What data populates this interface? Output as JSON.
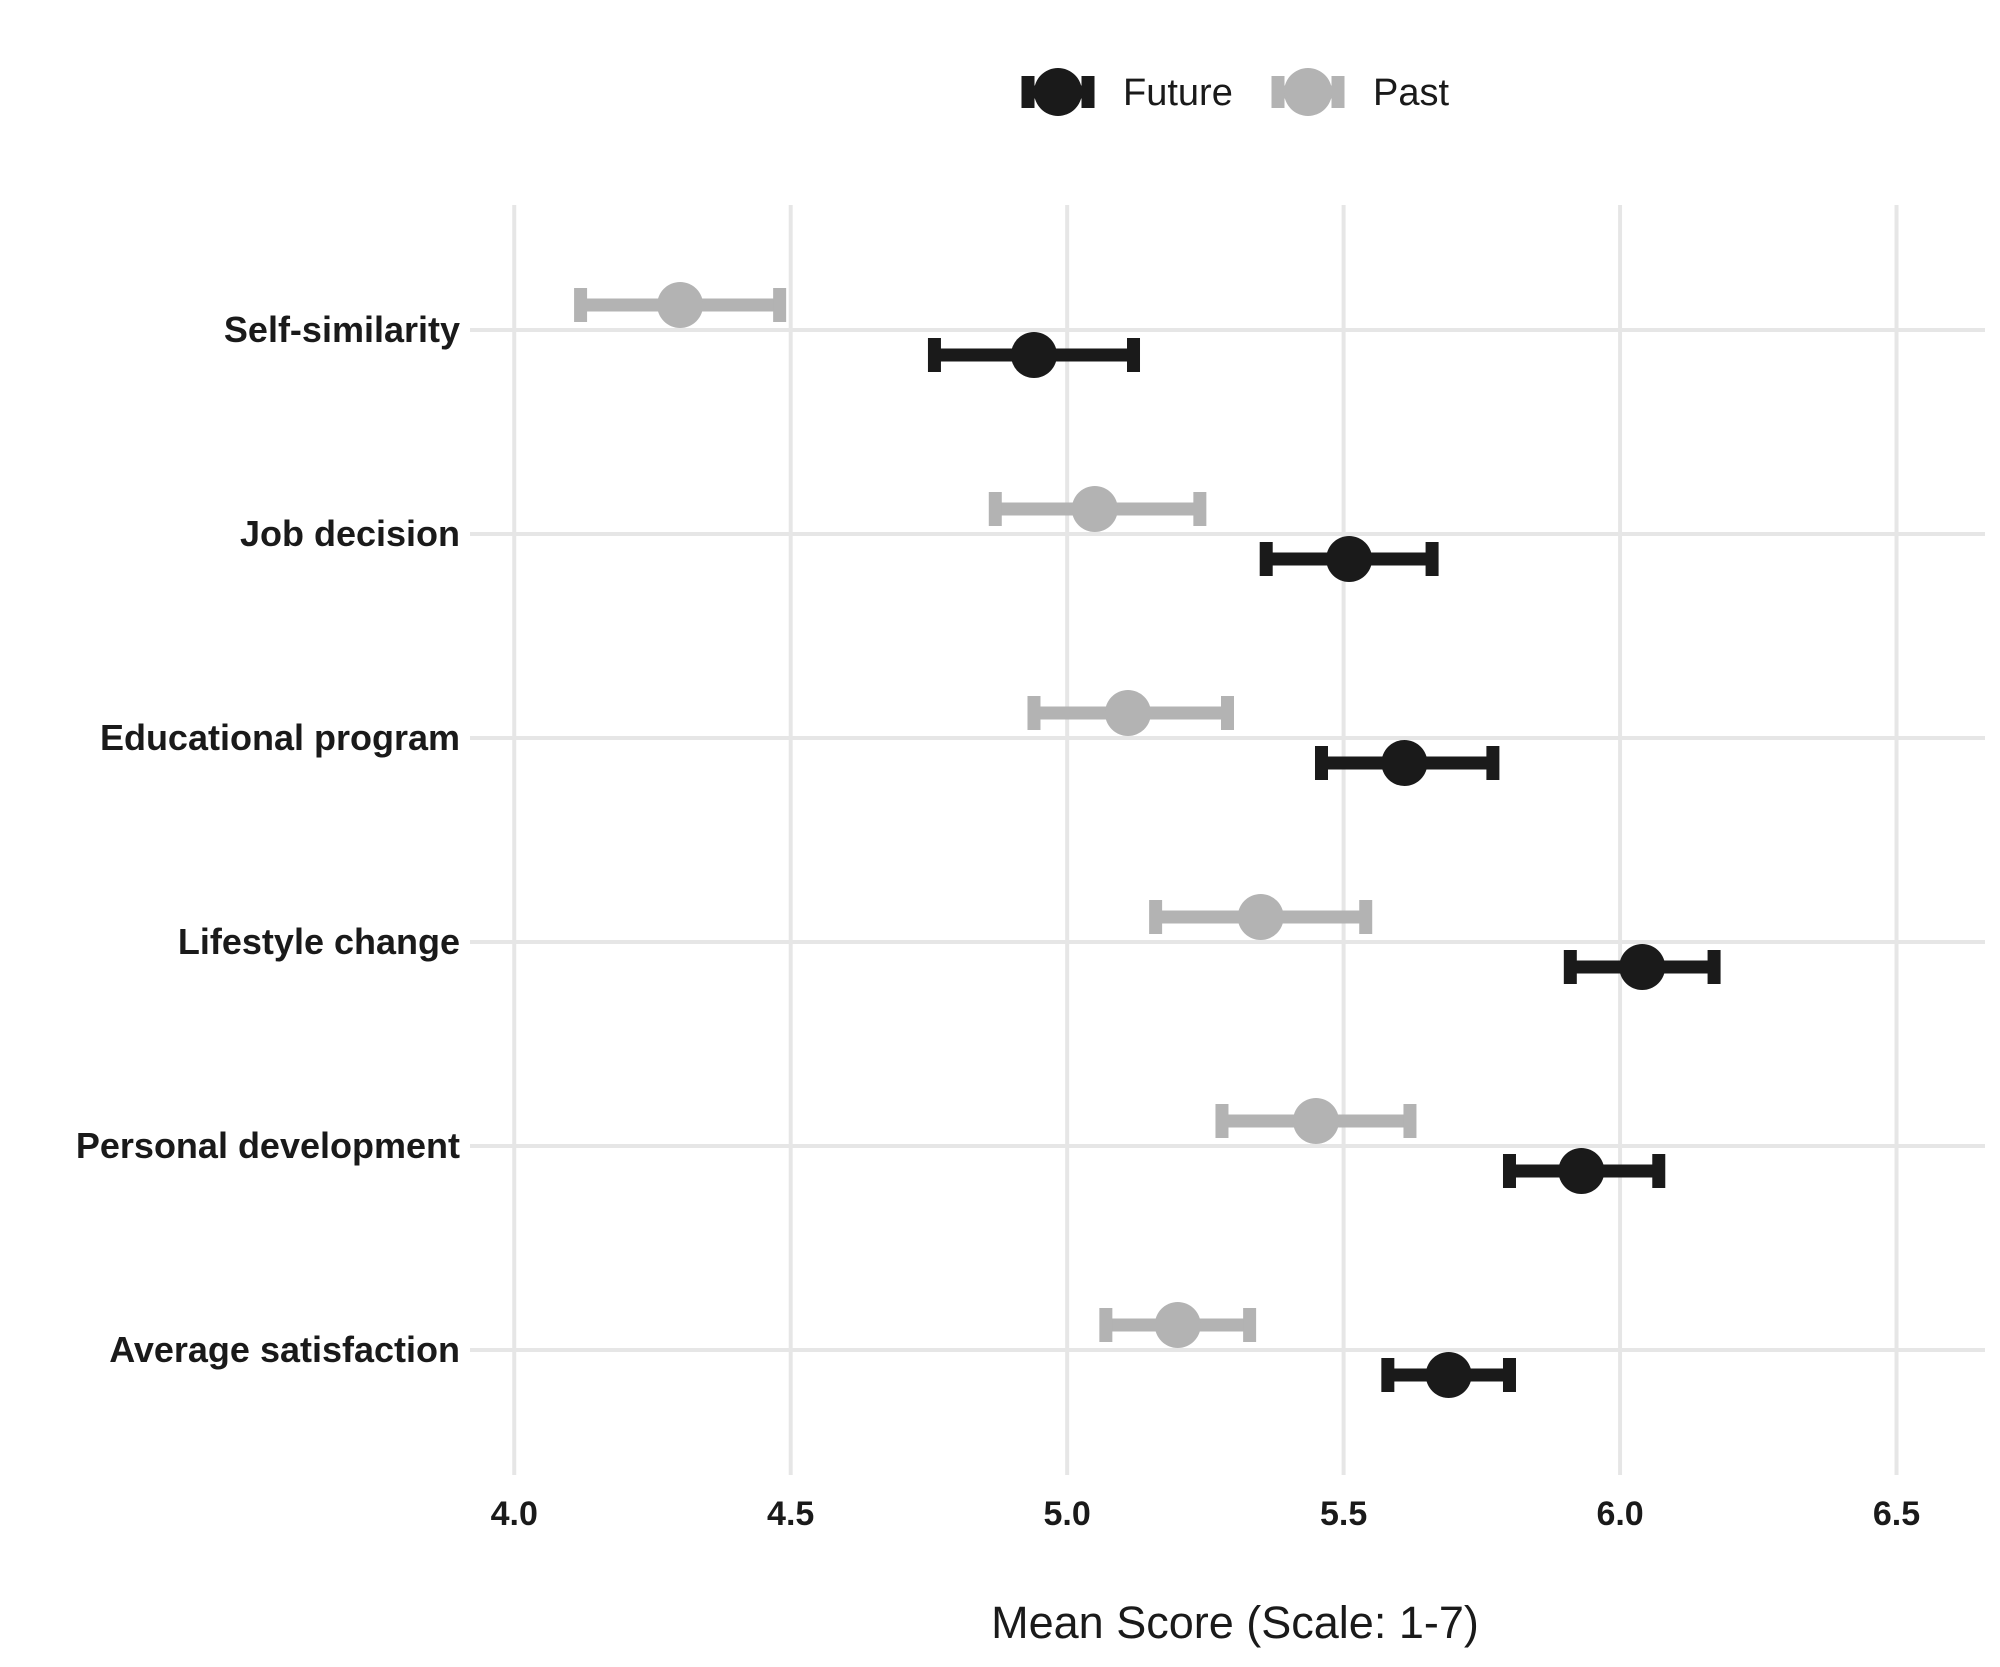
{
  "chart_data": {
    "type": "scatter",
    "xlabel": "Mean Score (Scale: 1-7)",
    "xlim": [
      3.92,
      6.66
    ],
    "xticks": [
      "4.0",
      "4.5",
      "5.0",
      "5.5",
      "6.0",
      "6.5"
    ],
    "categories": [
      "Self-similarity",
      "Job decision",
      "Educational program",
      "Lifestyle change",
      "Personal development",
      "Average satisfaction"
    ],
    "legend_position": "top",
    "grid": true,
    "series": [
      {
        "name": "Future",
        "color": "#1a1a1a",
        "values": [
          4.94,
          5.51,
          5.61,
          6.04,
          5.93,
          5.69
        ],
        "ci_low": [
          4.76,
          5.36,
          5.46,
          5.91,
          5.8,
          5.58
        ],
        "ci_high": [
          5.12,
          5.66,
          5.77,
          6.17,
          6.07,
          5.8
        ]
      },
      {
        "name": "Past",
        "color": "#b3b3b3",
        "values": [
          4.3,
          5.05,
          5.11,
          5.35,
          5.45,
          5.2
        ],
        "ci_low": [
          4.12,
          4.87,
          4.94,
          5.16,
          5.28,
          5.07
        ],
        "ci_high": [
          4.48,
          5.24,
          5.29,
          5.54,
          5.62,
          5.33
        ]
      }
    ]
  }
}
